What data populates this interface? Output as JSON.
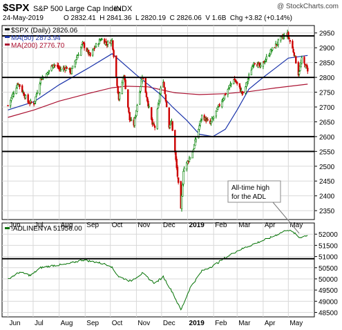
{
  "header": {
    "symbol": "$SPX",
    "name": "S&P 500 Large Cap Index",
    "exchange": "INDX",
    "date": "24-May-2019",
    "ohlc": "O 2832.41  H 2841.36  L 2820.19  C 2826.06  V 1.6B  Chg +3.82 (+0.14%)",
    "watermark": "@ StockCharts.com"
  },
  "colors": {
    "price": "#008000",
    "down_candle": "#cc0000",
    "ma50": "#1a33aa",
    "ma200": "#aa1030",
    "adl": "#007000",
    "grid": "#d8d8d8"
  },
  "chart_data": [
    {
      "type": "candlestick",
      "legend": [
        "$SPX (Daily) 2826.06",
        "MA(50) 2873.94",
        "MA(200) 2776.70"
      ],
      "ylim": [
        2320,
        2975
      ],
      "y_ticks": [
        2350,
        2400,
        2450,
        2500,
        2550,
        2600,
        2650,
        2700,
        2750,
        2800,
        2850,
        2900,
        2950
      ],
      "horizontal_lines": [
        2940,
        2800,
        2600,
        2550
      ],
      "price_path": [
        [
          "2018-06-01",
          2705
        ],
        [
          "2018-06-13",
          2782
        ],
        [
          "2018-06-25",
          2716
        ],
        [
          "2018-07-02",
          2713
        ],
        [
          "2018-07-10",
          2795
        ],
        [
          "2018-07-17",
          2809
        ],
        [
          "2018-07-25",
          2846
        ],
        [
          "2018-08-02",
          2827
        ],
        [
          "2018-08-10",
          2833
        ],
        [
          "2018-08-15",
          2818
        ],
        [
          "2018-08-21",
          2862
        ],
        [
          "2018-08-29",
          2914
        ],
        [
          "2018-09-07",
          2872
        ],
        [
          "2018-09-13",
          2905
        ],
        [
          "2018-09-20",
          2930
        ],
        [
          "2018-09-27",
          2914
        ],
        [
          "2018-10-03",
          2925
        ],
        [
          "2018-10-11",
          2728
        ],
        [
          "2018-10-17",
          2810
        ],
        [
          "2018-10-24",
          2657
        ],
        [
          "2018-10-29",
          2641
        ],
        [
          "2018-11-08",
          2806
        ],
        [
          "2018-11-20",
          2641
        ],
        [
          "2018-11-23",
          2632
        ],
        [
          "2018-11-30",
          2760
        ],
        [
          "2018-12-03",
          2790
        ],
        [
          "2018-12-10",
          2637
        ],
        [
          "2018-12-13",
          2650
        ],
        [
          "2018-12-20",
          2467
        ],
        [
          "2018-12-24",
          2351
        ],
        [
          "2018-12-27",
          2488
        ],
        [
          "2019-01-07",
          2549
        ],
        [
          "2019-01-18",
          2670
        ],
        [
          "2019-01-28",
          2643
        ],
        [
          "2019-02-08",
          2707
        ],
        [
          "2019-02-25",
          2796
        ],
        [
          "2019-03-08",
          2743
        ],
        [
          "2019-03-21",
          2854
        ],
        [
          "2019-03-29",
          2834
        ],
        [
          "2019-04-10",
          2888
        ],
        [
          "2019-04-23",
          2934
        ],
        [
          "2019-04-30",
          2946
        ],
        [
          "2019-05-08",
          2880
        ],
        [
          "2019-05-13",
          2812
        ],
        [
          "2019-05-17",
          2860
        ],
        [
          "2019-05-24",
          2826
        ]
      ],
      "ma50": [
        [
          "2018-06-01",
          2690
        ],
        [
          "2018-07-02",
          2718
        ],
        [
          "2018-08-01",
          2775
        ],
        [
          "2018-09-04",
          2830
        ],
        [
          "2018-10-03",
          2880
        ],
        [
          "2018-11-01",
          2808
        ],
        [
          "2018-11-30",
          2742
        ],
        [
          "2018-12-14",
          2700
        ],
        [
          "2018-12-31",
          2655
        ],
        [
          "2019-01-15",
          2608
        ],
        [
          "2019-01-31",
          2600
        ],
        [
          "2019-02-15",
          2625
        ],
        [
          "2019-03-01",
          2690
        ],
        [
          "2019-03-15",
          2760
        ],
        [
          "2019-04-01",
          2800
        ],
        [
          "2019-04-15",
          2830
        ],
        [
          "2019-05-01",
          2865
        ],
        [
          "2019-05-24",
          2874
        ]
      ],
      "ma200": [
        [
          "2018-06-01",
          2665
        ],
        [
          "2018-07-02",
          2690
        ],
        [
          "2018-08-01",
          2720
        ],
        [
          "2018-09-04",
          2745
        ],
        [
          "2018-10-03",
          2765
        ],
        [
          "2018-10-20",
          2770
        ],
        [
          "2018-11-15",
          2768
        ],
        [
          "2018-12-17",
          2748
        ],
        [
          "2019-01-15",
          2742
        ],
        [
          "2019-02-15",
          2745
        ],
        [
          "2019-03-15",
          2752
        ],
        [
          "2019-04-15",
          2764
        ],
        [
          "2019-05-24",
          2777
        ]
      ],
      "annotation": [
        "All-time high",
        "for the ADL"
      ]
    },
    {
      "type": "line",
      "legend": "!ADLINENYA 51956.00",
      "ylim": [
        48300,
        52500
      ],
      "y_ticks": [
        48500,
        49000,
        49500,
        50000,
        50500,
        51000,
        51500,
        52000
      ],
      "horizontal_lines": [
        50900
      ],
      "adl_path": [
        [
          "2018-06-01",
          50000
        ],
        [
          "2018-06-15",
          50300
        ],
        [
          "2018-06-28",
          50150
        ],
        [
          "2018-07-10",
          50500
        ],
        [
          "2018-07-25",
          50600
        ],
        [
          "2018-08-10",
          50650
        ],
        [
          "2018-08-29",
          50850
        ],
        [
          "2018-09-14",
          50750
        ],
        [
          "2018-10-01",
          50600
        ],
        [
          "2018-10-11",
          50100
        ],
        [
          "2018-10-25",
          49900
        ],
        [
          "2018-11-08",
          50250
        ],
        [
          "2018-11-23",
          49800
        ],
        [
          "2018-12-03",
          50100
        ],
        [
          "2018-12-14",
          49400
        ],
        [
          "2018-12-24",
          48600
        ],
        [
          "2019-01-04",
          49600
        ],
        [
          "2019-01-18",
          50350
        ],
        [
          "2019-02-01",
          50600
        ],
        [
          "2019-02-15",
          50950
        ],
        [
          "2019-03-01",
          51250
        ],
        [
          "2019-03-20",
          51550
        ],
        [
          "2019-04-10",
          51850
        ],
        [
          "2019-04-30",
          52200
        ],
        [
          "2019-05-08",
          52050
        ],
        [
          "2019-05-14",
          51850
        ],
        [
          "2019-05-24",
          51956
        ]
      ]
    }
  ],
  "x_axis": {
    "month_labels": [
      [
        "2018-06-01",
        "Jun"
      ],
      [
        "2018-07-01",
        "Jul"
      ],
      [
        "2018-08-01",
        "Aug"
      ],
      [
        "2018-09-01",
        "Sep"
      ],
      [
        "2018-10-01",
        "Oct"
      ],
      [
        "2018-11-01",
        "Nov"
      ],
      [
        "2018-12-01",
        "Dec"
      ],
      [
        "2019-01-01",
        "2019"
      ],
      [
        "2019-02-01",
        "Feb"
      ],
      [
        "2019-03-01",
        "Mar"
      ],
      [
        "2019-04-01",
        "Apr"
      ],
      [
        "2019-05-01",
        "May"
      ]
    ],
    "range": [
      "2018-05-25",
      "2019-06-01"
    ]
  }
}
